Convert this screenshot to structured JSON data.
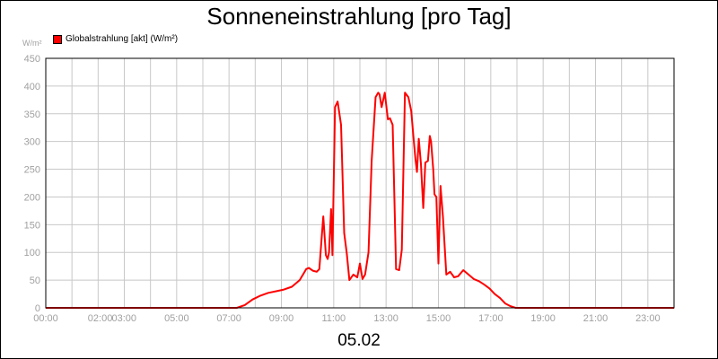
{
  "chart_data": {
    "type": "line",
    "title": "Sonneneinstrahlung [pro Tag]",
    "ylabel": "W/m²",
    "xlabel": "05.02",
    "ylim": [
      0,
      450
    ],
    "yticks": [
      0,
      50,
      100,
      150,
      200,
      250,
      300,
      350,
      400,
      450
    ],
    "xticks": [
      {
        "h": 0,
        "label": "00:00"
      },
      {
        "h": 2,
        "label": "02:00"
      },
      {
        "h": 3,
        "label": "03:00"
      },
      {
        "h": 5,
        "label": "05:00"
      },
      {
        "h": 7,
        "label": "07:00"
      },
      {
        "h": 9,
        "label": "09:00"
      },
      {
        "h": 11,
        "label": "11:00"
      },
      {
        "h": 13,
        "label": "13:00"
      },
      {
        "h": 15,
        "label": "15:00"
      },
      {
        "h": 17,
        "label": "17:00"
      },
      {
        "h": 19,
        "label": "19:00"
      },
      {
        "h": 21,
        "label": "21:00"
      },
      {
        "h": 23,
        "label": "23:00"
      }
    ],
    "xlim": [
      0,
      24
    ],
    "legend_position": "top-left",
    "grid": true,
    "series": [
      {
        "name": "Globalstrahlung [akt] (W/m²)",
        "color": "#ff0000",
        "x": [
          0,
          7.3,
          7.6,
          7.9,
          8.2,
          8.5,
          8.8,
          9.1,
          9.4,
          9.7,
          9.85,
          9.95,
          10.05,
          10.2,
          10.35,
          10.45,
          10.6,
          10.7,
          10.77,
          10.82,
          10.9,
          10.95,
          11.05,
          11.15,
          11.28,
          11.4,
          11.5,
          11.6,
          11.75,
          11.9,
          12.0,
          12.1,
          12.2,
          12.33,
          12.45,
          12.6,
          12.7,
          12.75,
          12.83,
          12.95,
          13.07,
          13.15,
          13.25,
          13.38,
          13.5,
          13.6,
          13.72,
          13.85,
          13.96,
          14.06,
          14.12,
          14.18,
          14.25,
          14.33,
          14.42,
          14.5,
          14.6,
          14.67,
          14.72,
          14.8,
          14.85,
          14.92,
          15.0,
          15.08,
          15.17,
          15.3,
          15.45,
          15.6,
          15.75,
          15.95,
          16.15,
          16.35,
          16.55,
          16.75,
          16.95,
          17.15,
          17.35,
          17.55,
          17.75,
          17.95,
          18.5,
          24
        ],
        "values": [
          0,
          0,
          5,
          15,
          22,
          27,
          30,
          33,
          38,
          50,
          62,
          70,
          72,
          67,
          65,
          70,
          165,
          95,
          88,
          100,
          178,
          95,
          362,
          372,
          330,
          135,
          98,
          50,
          60,
          55,
          80,
          52,
          60,
          100,
          265,
          380,
          388,
          385,
          362,
          388,
          340,
          342,
          330,
          70,
          68,
          105,
          388,
          380,
          355,
          300,
          270,
          245,
          305,
          260,
          180,
          262,
          265,
          310,
          300,
          250,
          205,
          200,
          80,
          220,
          165,
          60,
          65,
          55,
          57,
          68,
          60,
          52,
          48,
          42,
          35,
          25,
          18,
          8,
          3,
          0,
          0,
          0
        ]
      }
    ]
  }
}
